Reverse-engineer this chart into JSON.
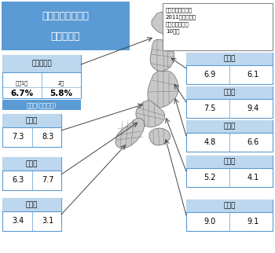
{
  "title_line1": "電力９社の今冬の",
  "title_line2": "需給見通し",
  "title_bg": "#5b9bd5",
  "title_color": "white",
  "note_text": "需要は厳寒だった\n2011年度並みを\n想定。北海道は\n10年度",
  "label_bg": "#bdd7ee",
  "box_border": "#5b9bd5",
  "yobiritsu_bg": "#5b9bd5",
  "yobiritsu_text": "予備率(供給余力)",
  "hokkaido_name": "北海道電力",
  "hokkaido_label1": "来年1月",
  "hokkaido_label2": "2月",
  "hokkaido_val1": "6.7%",
  "hokkaido_val2": "5.8%",
  "left_boxes": [
    {
      "name": "北　陸",
      "val1": "7.3",
      "val2": "8.3"
    },
    {
      "name": "中　国",
      "val1": "6.3",
      "val2": "7.7"
    },
    {
      "name": "九　州",
      "val1": "3.4",
      "val2": "3.1"
    }
  ],
  "right_boxes": [
    {
      "name": "東　北",
      "val1": "6.9",
      "val2": "6.1"
    },
    {
      "name": "東　京",
      "val1": "7.5",
      "val2": "9.4"
    },
    {
      "name": "中　部",
      "val1": "4.8",
      "val2": "6.6"
    },
    {
      "name": "関　西",
      "val1": "5.2",
      "val2": "4.1"
    },
    {
      "name": "四　国",
      "val1": "9.0",
      "val2": "9.1"
    }
  ],
  "bg_color": "#f2f2f2",
  "map_fill": "#c8c8c8",
  "map_edge": "#666666",
  "map_fill_light": "#dddddd"
}
